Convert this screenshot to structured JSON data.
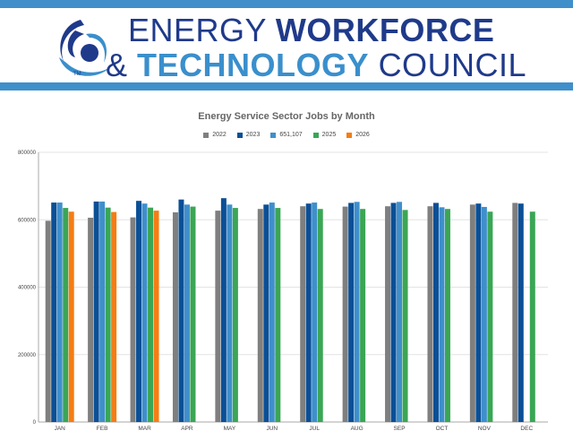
{
  "header": {
    "logo_text_line1_light": "ENERGY",
    "logo_text_line1_bold": "WORKFORCE",
    "logo_text_line2_amp": "&",
    "logo_text_line2_bold": "TECHNOLOGY",
    "logo_text_line2_light": "COUNCIL",
    "trademark": "TM",
    "colors": {
      "bar": "#3f8fcb",
      "navy": "#1f3a8a",
      "light_blue": "#3a8fcc"
    }
  },
  "chart_data": {
    "type": "bar",
    "title": "Energy Service Sector Jobs by Month",
    "xlabel": "",
    "ylabel": "",
    "ylim": [
      0,
      800000
    ],
    "yticks": [
      "0",
      "200000",
      "400000",
      "600000",
      "800000"
    ],
    "grid": true,
    "legend_position": "top",
    "categories": [
      "JAN",
      "FEB",
      "MAR",
      "APR",
      "MAY",
      "JUN",
      "JUL",
      "AUG",
      "SEP",
      "OCT",
      "NOV",
      "DEC"
    ],
    "series": [
      {
        "name": "2022",
        "color": "#7f7f7f",
        "values": [
          597000,
          606000,
          607000,
          622000,
          627000,
          632000,
          640000,
          639000,
          640000,
          640000,
          645000,
          650000
        ]
      },
      {
        "name": "2023",
        "color": "#0b4f96",
        "values": [
          651000,
          654000,
          656000,
          660000,
          664000,
          645000,
          648000,
          650000,
          650000,
          650000,
          648000,
          648000
        ]
      },
      {
        "name": "651,107",
        "color": "#3f8fcb",
        "values": [
          651000,
          654000,
          648000,
          645000,
          645000,
          651000,
          651000,
          653000,
          653000,
          637000,
          638000,
          null
        ]
      },
      {
        "name": "2025",
        "color": "#3aa655",
        "values": [
          635000,
          636000,
          636000,
          639000,
          635000,
          635000,
          632000,
          632000,
          629000,
          632000,
          624000,
          624000
        ]
      },
      {
        "name": "2026",
        "color": "#f57c14",
        "values": [
          624000,
          623000,
          627000,
          null,
          null,
          null,
          null,
          null,
          null,
          null,
          null,
          null
        ]
      }
    ]
  }
}
